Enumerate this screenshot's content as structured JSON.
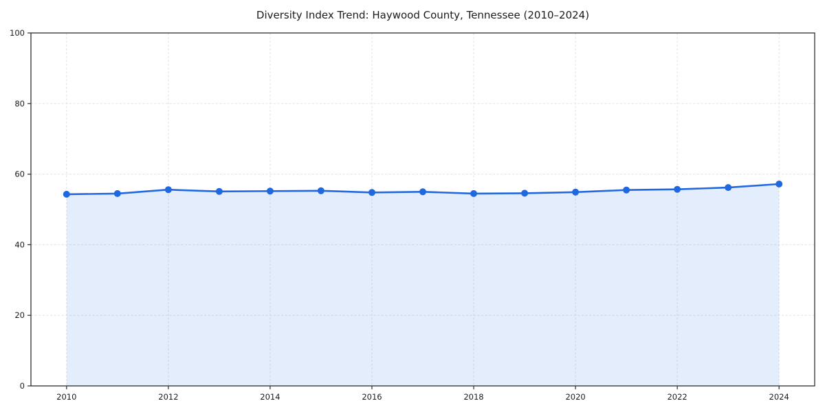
{
  "figure": {
    "title": "Diversity Index Trend: Haywood County, Tennessee (2010–2024)",
    "background": "#ffffff"
  },
  "chart_data": {
    "type": "line",
    "title": "Diversity Index Trend: Haywood County, Tennessee (2010–2024)",
    "xlabel": "",
    "ylabel": "",
    "x": [
      2010,
      2011,
      2012,
      2013,
      2014,
      2015,
      2016,
      2017,
      2018,
      2019,
      2020,
      2021,
      2022,
      2023,
      2024
    ],
    "series": [
      {
        "name": "Diversity Index",
        "values": [
          54.3,
          54.5,
          55.6,
          55.1,
          55.2,
          55.3,
          54.8,
          55.0,
          54.5,
          54.6,
          54.9,
          55.5,
          55.7,
          56.2,
          57.2
        ]
      }
    ],
    "xlim": [
      2009.3,
      2024.7
    ],
    "ylim": [
      0,
      100
    ],
    "xticks": [
      2010,
      2012,
      2014,
      2016,
      2018,
      2020,
      2022,
      2024
    ],
    "yticks": [
      0,
      20,
      40,
      60,
      80,
      100
    ],
    "grid": "dashed-both-axes",
    "legend": "none",
    "area_fill": true,
    "marker": "circle",
    "colors": {
      "line": "#2068e0",
      "marker": "#2068e0",
      "fill": "#2068e0",
      "fill_opacity": 0.12,
      "grid": "#e1e1e1",
      "axis": "#2b2b2b",
      "text": "#1a1a1a",
      "background": "#ffffff"
    }
  }
}
